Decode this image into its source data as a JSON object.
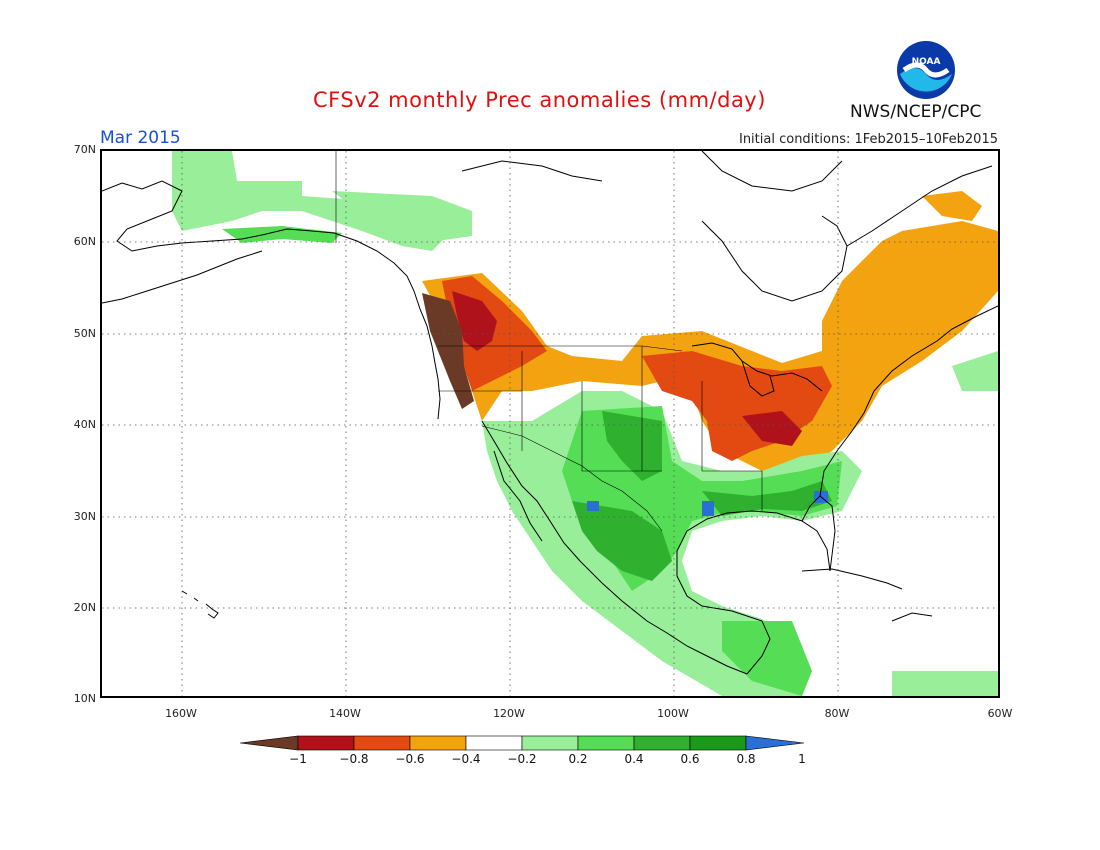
{
  "header": {
    "title": "CFSv2 monthly Prec anomalies (mm/day)",
    "month": "Mar 2015",
    "initial_conditions": "Initial conditions: 1Feb2015–10Feb2015",
    "agency": "NWS/NCEP/CPC",
    "logo_text": "NOAA"
  },
  "axes": {
    "lat_labels": [
      "70N",
      "60N",
      "50N",
      "40N",
      "30N",
      "20N",
      "10N"
    ],
    "lon_labels": [
      "160W",
      "140W",
      "120W",
      "100W",
      "80W",
      "60W"
    ]
  },
  "legend": {
    "tick_labels": [
      "−1",
      "−0.8",
      "−0.6",
      "−0.4",
      "−0.2",
      "0.2",
      "0.4",
      "0.6",
      "0.8",
      "1"
    ],
    "colors": [
      "#6b3a26",
      "#b0121b",
      "#e34a12",
      "#f2a30f",
      "#ffffff",
      "#99ee99",
      "#55dd55",
      "#2fb02f",
      "#1a9a1a",
      "#2a6fd6"
    ]
  },
  "colors": {
    "brown": "#6b3a26",
    "dark_red": "#b0121b",
    "red": "#e34a12",
    "orange": "#f2a30f",
    "light_green": "#99ee99",
    "green": "#55dd55",
    "mid_green": "#2fb02f",
    "dark_green": "#1a9a1a",
    "blue": "#2a6fd6",
    "title_red": "#e01010",
    "month_blue": "#1a4fd1"
  }
}
